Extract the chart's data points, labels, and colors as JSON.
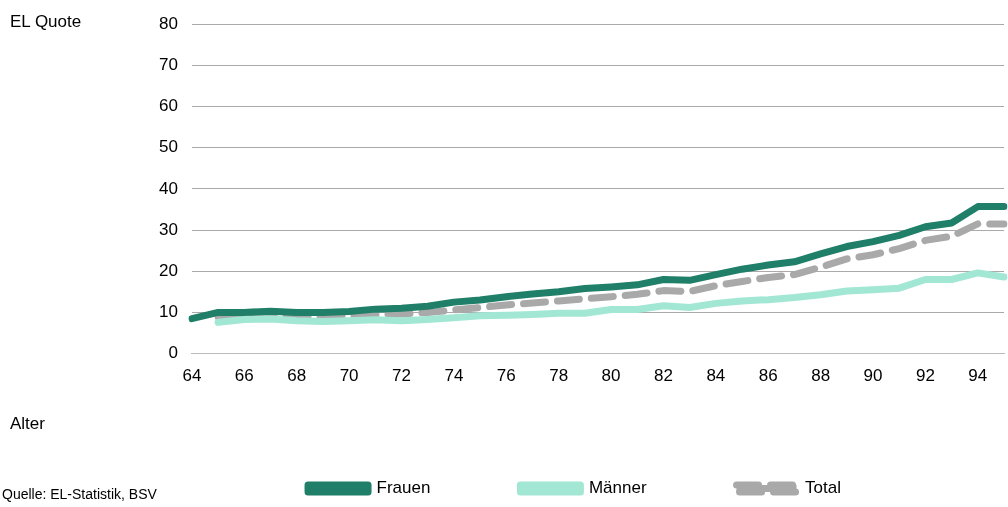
{
  "chart_data": {
    "type": "line",
    "ylabel": "EL Quote",
    "categories": [
      "64",
      null,
      "66",
      null,
      "68",
      null,
      "70",
      null,
      "72",
      null,
      "74",
      null,
      "76",
      null,
      "78",
      null,
      "80",
      null,
      "82",
      null,
      "84",
      null,
      "86",
      null,
      "88",
      null,
      "90",
      null,
      "92",
      null,
      "94",
      null
    ],
    "series": [
      {
        "name": "Frauen",
        "color": "#1f7f68",
        "line_style": "solid",
        "values": [
          8.5,
          10,
          10,
          10.3,
          10,
          10,
          10.2,
          10.8,
          11,
          11.5,
          12.5,
          13,
          13.8,
          14.5,
          15,
          15.8,
          16.2,
          16.7,
          18,
          17.8,
          19.2,
          20.5,
          21.5,
          22.3,
          24.2,
          26,
          27.2,
          28.7,
          30.8,
          31.7,
          35.7,
          35.7
        ]
      },
      {
        "name": "Männer",
        "color": "#a2e6d4",
        "line_style": "solid",
        "values": [
          null,
          7.6,
          8.3,
          8.4,
          8.0,
          7.8,
          8.0,
          8.2,
          8.0,
          8.3,
          8.7,
          9.2,
          9.3,
          9.5,
          9.8,
          9.8,
          10.7,
          10.7,
          11.6,
          11.2,
          12.2,
          12.8,
          13.1,
          13.6,
          14.3,
          15.2,
          15.5,
          15.9,
          18,
          18,
          19.6,
          18.6
        ]
      },
      {
        "name": "Total",
        "color": "#a9a9a9",
        "line_style": "dashed",
        "values": [
          null,
          8.9,
          9.2,
          9.3,
          9.0,
          8.9,
          9.1,
          9.5,
          9.6,
          10.0,
          10.6,
          11.2,
          11.8,
          12.3,
          12.8,
          13.3,
          13.8,
          14.4,
          15.3,
          15.1,
          16.5,
          17.5,
          18.5,
          19.2,
          21,
          23,
          24,
          25.5,
          27.5,
          28.5,
          31.5,
          31.5
        ]
      }
    ],
    "ylim": [
      0,
      80
    ],
    "yticks": [
      0,
      10,
      20,
      30,
      40,
      50,
      60,
      70,
      80
    ],
    "grid": "y",
    "legend": "bottom",
    "marker": "none",
    "annotations": [
      "Alter",
      "Quelle: EL-Statistik, BSV"
    ]
  }
}
